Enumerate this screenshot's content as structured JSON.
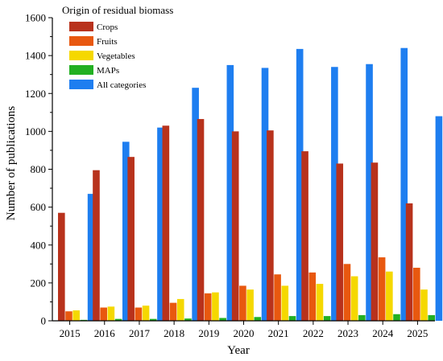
{
  "chart_data": {
    "type": "bar",
    "xlabel": "Year",
    "ylabel": "Number of publications",
    "ylim": [
      0,
      1600
    ],
    "yticks": [
      "0",
      "200",
      "400",
      "600",
      "800",
      "1000",
      "1200",
      "1400",
      "1600"
    ],
    "categories": [
      "2015",
      "2016",
      "2017",
      "2018",
      "2019",
      "2020",
      "2021",
      "2022",
      "2023",
      "2024",
      "2025"
    ],
    "legend": {
      "title": "Origin of residual biomass",
      "placement": "top-left"
    },
    "series": [
      {
        "name": "Crops",
        "color": "#b8321c",
        "values": [
          570,
          795,
          865,
          1030,
          1065,
          1000,
          1005,
          895,
          830,
          835,
          620
        ]
      },
      {
        "name": "Fruits",
        "color": "#e8580f",
        "values": [
          50,
          70,
          70,
          95,
          145,
          185,
          245,
          255,
          300,
          335,
          280
        ]
      },
      {
        "name": "Vegetables",
        "color": "#f5d800",
        "values": [
          55,
          75,
          80,
          115,
          150,
          165,
          185,
          195,
          235,
          260,
          165
        ]
      },
      {
        "name": "MAPs",
        "color": "#22b022",
        "values": [
          5,
          10,
          10,
          12,
          15,
          20,
          25,
          25,
          30,
          35,
          30
        ]
      },
      {
        "name": "All categories",
        "color": "#1e7ef0",
        "values": [
          670,
          945,
          1020,
          1230,
          1350,
          1335,
          1435,
          1340,
          1355,
          1440,
          1080
        ]
      }
    ]
  }
}
